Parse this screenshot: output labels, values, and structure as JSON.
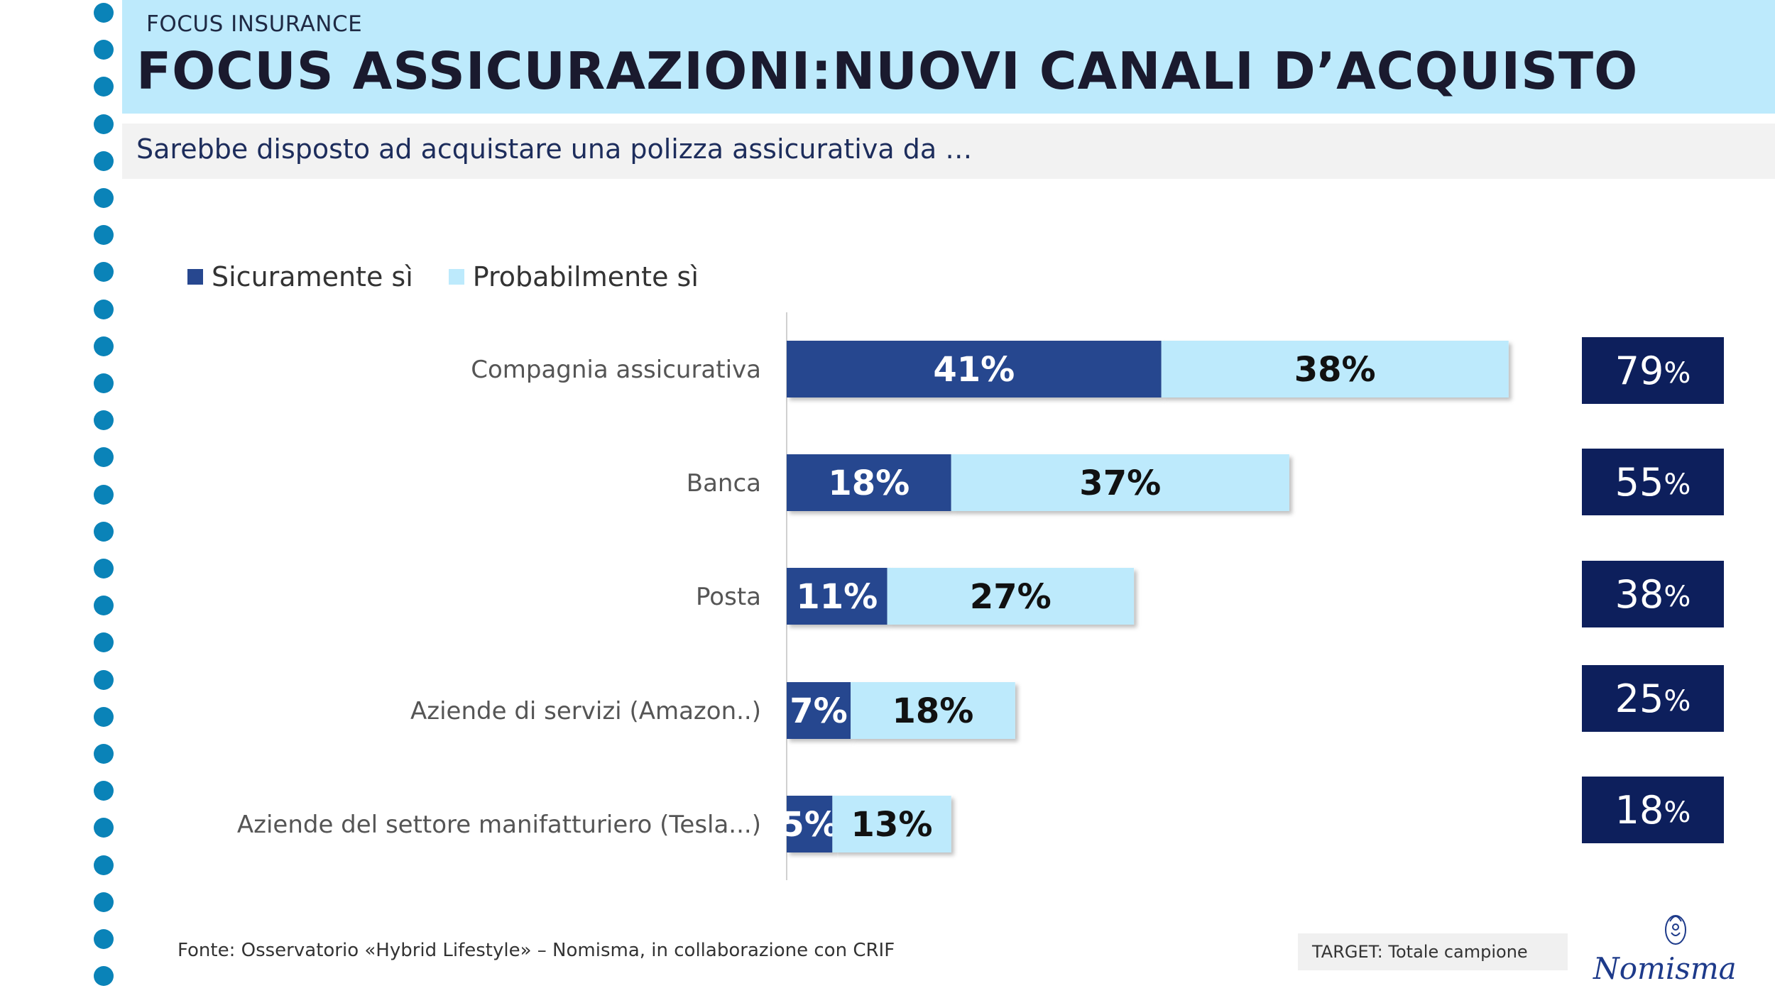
{
  "header": {
    "kicker": "FOCUS INSURANCE",
    "title": "FOCUS ASSICURAZIONI:NUOVI CANALI D’ACQUISTO"
  },
  "question": "Sarebbe disposto ad acquistare una polizza assicurativa da …",
  "colors": {
    "accent": "#bdeafc",
    "dots": "#0a83b8",
    "dark": "#27478f",
    "light": "#bdeafc",
    "total_box": "#0d1f5c"
  },
  "chart_data": {
    "type": "bar",
    "orientation": "horizontal",
    "stacked": true,
    "categories": [
      "Compagnia assicurativa",
      "Banca",
      "Posta",
      "Aziende di servizi (Amazon..)",
      "Aziende del settore manifatturiero (Tesla...)"
    ],
    "series": [
      {
        "name": "Sicuramente sì",
        "values": [
          41,
          18,
          11,
          7,
          5
        ],
        "color": "#27478f"
      },
      {
        "name": "Probabilmente sì",
        "values": [
          38,
          37,
          27,
          18,
          13
        ],
        "color": "#bdeafc"
      }
    ],
    "totals": [
      79,
      55,
      38,
      25,
      18
    ],
    "xlim": [
      0,
      100
    ],
    "unit": "%",
    "legend_position": "top-left",
    "grid": false
  },
  "footer": {
    "source": "Fonte: Osservatorio «Hybrid  Lifestyle» – Nomisma, in collaborazione con CRIF",
    "target": "TARGET: Totale campione",
    "logo_text": "Nomisma"
  }
}
